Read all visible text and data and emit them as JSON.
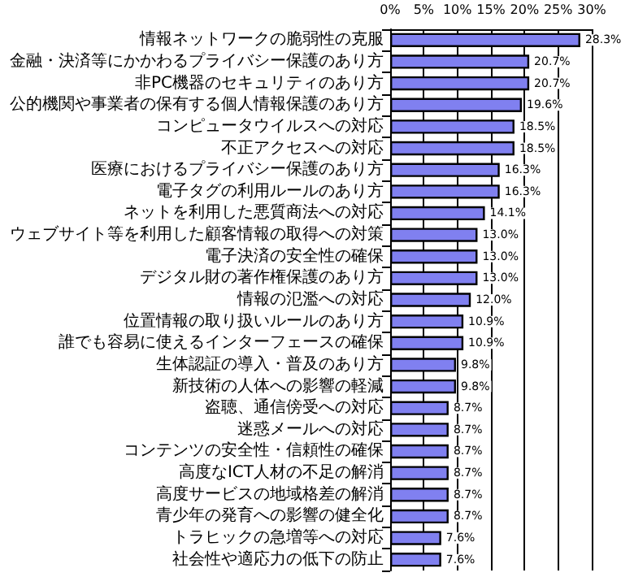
{
  "chart_data": {
    "type": "bar",
    "orientation": "horizontal",
    "categories": [
      "情報ネットワークの脆弱性の克服",
      "金融・決済等にかかわるプライバシー保護のあり方",
      "非PC機器のセキュリティのあり方",
      "公的機関や事業者の保有する個人情報保護のあり方",
      "コンピュータウイルスへの対応",
      "不正アクセスへの対応",
      "医療におけるプライバシー保護のあり方",
      "電子タグの利用ルールのあり方",
      "ネットを利用した悪質商法への対応",
      "ウェブサイト等を利用した顧客情報の取得への対策",
      "電子決済の安全性の確保",
      "デジタル財の著作権保護のあり方",
      "情報の氾濫への対応",
      "位置情報の取り扱いルールのあり方",
      "誰でも容易に使えるインターフェースの確保",
      "生体認証の導入・普及のあり方",
      "新技術の人体への影響の軽減",
      "盗聴、通信傍受への対応",
      "迷惑メールへの対応",
      "コンテンツの安全性・信頼性の確保",
      "高度なICT人材の不足の解消",
      "高度サービスの地域格差の解消",
      "青少年の発育への影響の健全化",
      "トラヒックの急増等への対応",
      "社会性や適応力の低下の防止"
    ],
    "values": [
      28.3,
      20.7,
      20.7,
      19.6,
      18.5,
      18.5,
      16.3,
      16.3,
      14.1,
      13.0,
      13.0,
      13.0,
      12.0,
      10.9,
      10.9,
      9.8,
      9.8,
      8.7,
      8.7,
      8.7,
      8.7,
      8.7,
      8.7,
      7.6,
      7.6
    ],
    "value_labels": [
      "28.3%",
      "20.7%",
      "20.7%",
      "19.6%",
      "18.5%",
      "18.5%",
      "16.3%",
      "16.3%",
      "14.1%",
      "13.0%",
      "13.0%",
      "13.0%",
      "12.0%",
      "10.9%",
      "10.9%",
      "9.8%",
      "9.8%",
      "8.7%",
      "8.7%",
      "8.7%",
      "8.7%",
      "8.7%",
      "8.7%",
      "7.6%",
      "7.6%"
    ],
    "color": "#8080f0",
    "xlim": [
      0,
      30
    ],
    "xticks": [
      {
        "value": 0,
        "label": "0%"
      },
      {
        "value": 5,
        "label": "5%"
      },
      {
        "value": 10,
        "label": "10%"
      },
      {
        "value": 15,
        "label": "15%"
      },
      {
        "value": 20,
        "label": "20%"
      },
      {
        "value": 25,
        "label": "25%"
      },
      {
        "value": 30,
        "label": "30%"
      }
    ],
    "grid": "x"
  }
}
